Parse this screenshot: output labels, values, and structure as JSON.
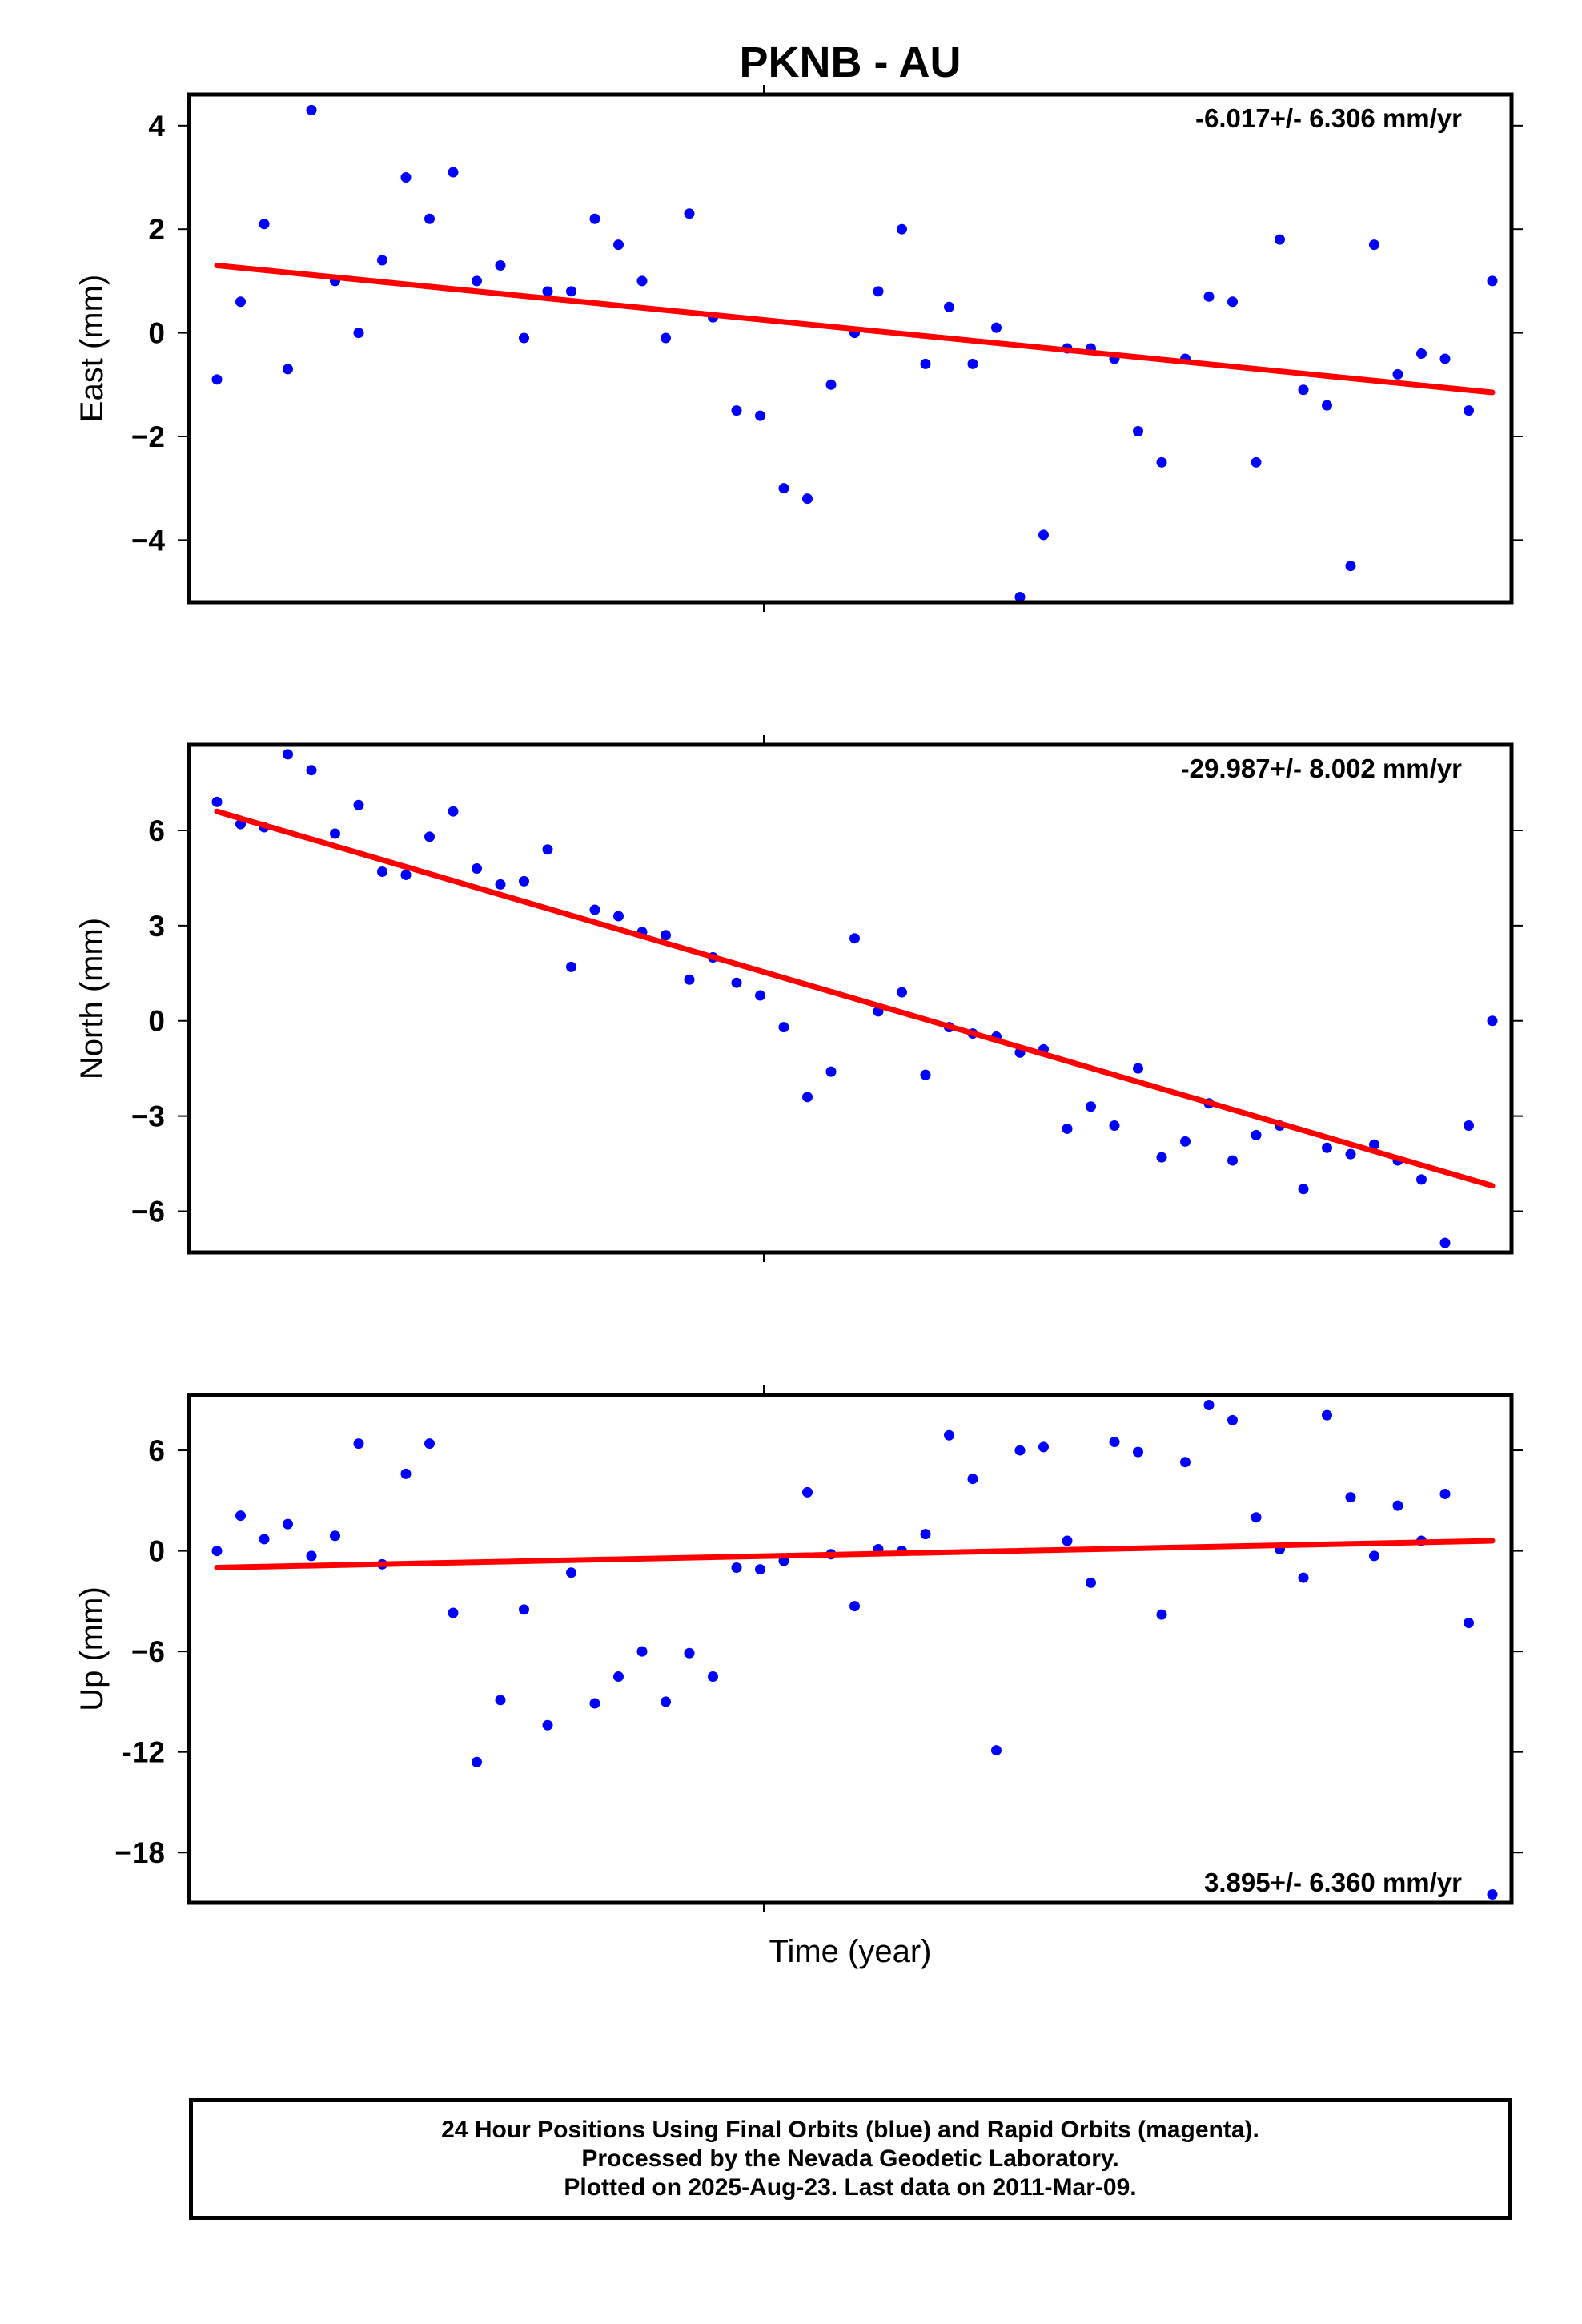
{
  "title": "PKNB - AU",
  "xlabel": "Time (year)",
  "colors": {
    "final_orbit_points": "#0000ff",
    "trend_line": "#ff0000",
    "frame": "#000000"
  },
  "caption": [
    "24 Hour Positions Using Final Orbits (blue) and Rapid Orbits (magenta).",
    "Processed by the Nevada Geodetic Laboratory.",
    "Plotted on 2025-Aug-23. Last data on 2011-Mar-09."
  ],
  "chart_data": [
    {
      "type": "scatter",
      "ylabel": "East (mm)",
      "rate_label": "-6.017+/- 6.306 mm/yr",
      "rate_position": "top-right",
      "ylim": [
        -5.2,
        4.6
      ],
      "yticks": [
        4,
        2,
        0,
        -2,
        -4
      ],
      "ytick_labels": [
        "4",
        "2",
        "0",
        "−2",
        "−4"
      ],
      "x_index": [
        0,
        1,
        2,
        3,
        4,
        5,
        6,
        7,
        8,
        9,
        10,
        11,
        12,
        13,
        14,
        15,
        16,
        17,
        18,
        19,
        20,
        21,
        22,
        23,
        24,
        25,
        26,
        27,
        28,
        29,
        30,
        31,
        32,
        33,
        34,
        35,
        36,
        37,
        38,
        39,
        40,
        41,
        42,
        43,
        44,
        45,
        46,
        47,
        48,
        49,
        50,
        51,
        52,
        53,
        54
      ],
      "values": [
        -0.9,
        0.6,
        2.1,
        -0.7,
        4.3,
        1.0,
        0.0,
        1.4,
        3.0,
        2.2,
        3.1,
        1.0,
        1.3,
        -0.1,
        0.8,
        0.8,
        2.2,
        1.7,
        1.0,
        -0.1,
        2.3,
        0.3,
        -1.5,
        -1.6,
        -3.0,
        -3.2,
        -1.0,
        0.0,
        0.8,
        2.0,
        -0.6,
        0.5,
        -0.6,
        0.1,
        -5.1,
        -3.9,
        -0.3,
        -0.3,
        -0.5,
        -1.9,
        -2.5,
        -0.5,
        0.7,
        0.6,
        -2.5,
        1.8,
        -1.1,
        -1.4,
        -4.5,
        1.7,
        -0.8,
        -0.4,
        -0.5,
        -1.5,
        1.0
      ],
      "trend": {
        "x_index": [
          0,
          54
        ],
        "values": [
          1.3,
          -1.15
        ]
      }
    },
    {
      "type": "scatter",
      "ylabel": "North (mm)",
      "rate_label": "-29.987+/- 8.002 mm/yr",
      "rate_position": "top-right",
      "ylim": [
        -7.3,
        8.7
      ],
      "yticks": [
        6,
        3,
        0,
        -3,
        -6
      ],
      "ytick_labels": [
        "6",
        "3",
        "0",
        "−3",
        "−6"
      ],
      "x_index": [
        0,
        1,
        2,
        3,
        4,
        5,
        6,
        7,
        8,
        9,
        10,
        11,
        12,
        13,
        14,
        15,
        16,
        17,
        18,
        19,
        20,
        21,
        22,
        23,
        24,
        25,
        26,
        27,
        28,
        29,
        30,
        31,
        32,
        33,
        34,
        35,
        36,
        37,
        38,
        39,
        40,
        41,
        42,
        43,
        44,
        45,
        46,
        47,
        48,
        49,
        50,
        51,
        52,
        53,
        54
      ],
      "values": [
        6.9,
        6.2,
        6.1,
        8.4,
        7.9,
        5.9,
        6.8,
        4.7,
        4.6,
        5.8,
        6.6,
        4.8,
        4.3,
        4.4,
        5.4,
        1.7,
        3.5,
        3.3,
        2.8,
        2.7,
        1.3,
        2.0,
        1.2,
        0.8,
        -0.2,
        -2.4,
        -1.6,
        2.6,
        0.3,
        0.9,
        -1.7,
        -0.2,
        -0.4,
        -0.5,
        -1.0,
        -0.9,
        -3.4,
        -2.7,
        -3.3,
        -1.5,
        -4.3,
        -3.8,
        -2.6,
        -4.4,
        -3.6,
        -3.3,
        -5.3,
        -4.0,
        -4.2,
        -3.9,
        -4.4,
        -5.0,
        -7.0,
        -3.3,
        0.0
      ],
      "trend": {
        "x_index": [
          0,
          54
        ],
        "values": [
          6.6,
          -5.2
        ]
      }
    },
    {
      "type": "scatter",
      "ylabel": "Up (mm)",
      "rate_label": "3.895+/- 6.360 mm/yr",
      "rate_position": "bottom-right",
      "ylim": [
        -21.0,
        9.3
      ],
      "yticks": [
        6,
        0,
        -6,
        -12,
        -18
      ],
      "ytick_labels": [
        "6",
        "0",
        "−6",
        "-12",
        "−18"
      ],
      "x_index": [
        0,
        1,
        2,
        3,
        4,
        5,
        6,
        7,
        8,
        9,
        10,
        11,
        12,
        13,
        14,
        15,
        16,
        17,
        18,
        19,
        20,
        21,
        22,
        23,
        24,
        25,
        26,
        27,
        28,
        29,
        30,
        31,
        32,
        33,
        34,
        35,
        36,
        37,
        38,
        39,
        40,
        41,
        42,
        43,
        44,
        45,
        46,
        47,
        48,
        49,
        50,
        51,
        52,
        53,
        54
      ],
      "values": [
        0.0,
        2.1,
        0.7,
        1.6,
        -0.3,
        0.9,
        6.4,
        -0.8,
        4.6,
        6.4,
        -3.7,
        -12.6,
        -8.9,
        -3.5,
        -10.4,
        -1.3,
        -9.1,
        -7.5,
        -6.0,
        -9.0,
        -6.1,
        -7.5,
        -1.0,
        -1.1,
        -0.6,
        3.5,
        -0.2,
        -3.3,
        0.1,
        0.0,
        1.0,
        6.9,
        4.3,
        -11.9,
        6.0,
        6.2,
        0.6,
        -1.9,
        6.5,
        5.9,
        -3.8,
        5.3,
        8.7,
        7.8,
        2.0,
        0.1,
        -1.6,
        8.1,
        3.2,
        -0.3,
        2.7,
        0.6,
        3.4,
        -4.3,
        -20.5
      ],
      "trend": {
        "x_index": [
          0,
          54
        ],
        "values": [
          -1.0,
          0.6
        ]
      }
    }
  ]
}
